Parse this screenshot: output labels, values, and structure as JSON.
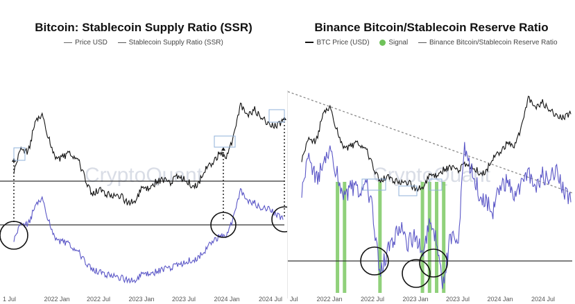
{
  "chart_data": [
    {
      "type": "line",
      "title": "Bitcoin: Stablecoin Supply Ratio (SSR)",
      "legend": [
        "Price USD",
        "Stablecoin Supply Ratio (SSR)"
      ],
      "legend_placement": "top",
      "watermark": "CryptoQuant",
      "x_ticks": [
        "1 Jul",
        "2022 Jan",
        "2022 Jul",
        "2023 Jan",
        "2023 Jul",
        "2024 Jan",
        "2024 Jul"
      ],
      "series": [
        {
          "name": "Price USD",
          "color": "#111111",
          "x": [
            "2021-07",
            "2021-08",
            "2021-09",
            "2021-10",
            "2021-11",
            "2021-12",
            "2022-01",
            "2022-02",
            "2022-03",
            "2022-04",
            "2022-05",
            "2022-06",
            "2022-07",
            "2022-08",
            "2022-09",
            "2022-10",
            "2022-11",
            "2022-12",
            "2023-01",
            "2023-02",
            "2023-03",
            "2023-04",
            "2023-05",
            "2023-06",
            "2023-07",
            "2023-08",
            "2023-09",
            "2023-10",
            "2023-11",
            "2023-12",
            "2024-01",
            "2024-02",
            "2024-03",
            "2024-04",
            "2024-05",
            "2024-06",
            "2024-07",
            "2024-08",
            "2024-09"
          ],
          "values": [
            33,
            46,
            43,
            60,
            64,
            50,
            40,
            41,
            43,
            40,
            30,
            20,
            23,
            21,
            19,
            20,
            16,
            17,
            23,
            24,
            27,
            29,
            27,
            30,
            29,
            26,
            26,
            34,
            37,
            43,
            42,
            52,
            70,
            64,
            67,
            62,
            60,
            58,
            60
          ]
        },
        {
          "name": "Stablecoin Supply Ratio (SSR)",
          "color": "#5b57c7",
          "x": [
            "2021-07",
            "2021-08",
            "2021-09",
            "2021-10",
            "2021-11",
            "2021-12",
            "2022-01",
            "2022-02",
            "2022-03",
            "2022-04",
            "2022-05",
            "2022-06",
            "2022-07",
            "2022-08",
            "2022-09",
            "2022-10",
            "2022-11",
            "2022-12",
            "2023-01",
            "2023-02",
            "2023-03",
            "2023-04",
            "2023-05",
            "2023-06",
            "2023-07",
            "2023-08",
            "2023-09",
            "2023-10",
            "2023-11",
            "2023-12",
            "2024-01",
            "2024-02",
            "2024-03",
            "2024-04",
            "2024-05",
            "2024-06",
            "2024-07",
            "2024-08",
            "2024-09"
          ],
          "values": [
            4.5,
            6.0,
            5.8,
            7.5,
            8.2,
            6.0,
            4.5,
            4.3,
            4.0,
            3.5,
            2.6,
            1.8,
            1.6,
            1.4,
            1.2,
            1.1,
            0.9,
            0.9,
            1.3,
            1.5,
            1.6,
            1.9,
            2.0,
            2.2,
            2.4,
            2.7,
            2.9,
            3.5,
            4.3,
            4.8,
            5.0,
            6.5,
            9.0,
            8.0,
            7.8,
            7.2,
            7.5,
            6.8,
            6.3
          ]
        }
      ]
    },
    {
      "type": "line",
      "title": "Binance Bitcoin/Stablecoin Reserve Ratio",
      "legend": [
        "BTC Price (USD)",
        "Signal",
        "Binance Bitcoin/Stablecoin Reserve Ratio"
      ],
      "legend_placement": "top",
      "watermark": "CryptoQuant",
      "x_ticks": [
        "Jul",
        "2022 Jan",
        "2022 Jul",
        "2023 Jan",
        "2023 Jul",
        "2024 Jan",
        "2024 Jul"
      ],
      "series": [
        {
          "name": "BTC Price (USD)",
          "color": "#111111",
          "x": [
            "2021-07",
            "2021-08",
            "2021-09",
            "2021-10",
            "2021-11",
            "2021-12",
            "2022-01",
            "2022-02",
            "2022-03",
            "2022-04",
            "2022-05",
            "2022-06",
            "2022-07",
            "2022-08",
            "2022-09",
            "2022-10",
            "2022-11",
            "2022-12",
            "2023-01",
            "2023-02",
            "2023-03",
            "2023-04",
            "2023-05",
            "2023-06",
            "2023-07",
            "2023-08",
            "2023-09",
            "2023-10",
            "2023-11",
            "2023-12",
            "2024-01",
            "2024-02",
            "2024-03",
            "2024-04",
            "2024-05",
            "2024-06",
            "2024-07",
            "2024-08",
            "2024-09"
          ],
          "values": [
            33,
            46,
            43,
            60,
            64,
            50,
            40,
            41,
            43,
            40,
            30,
            20,
            23,
            21,
            19,
            20,
            16,
            17,
            23,
            24,
            27,
            29,
            27,
            30,
            29,
            26,
            26,
            34,
            37,
            43,
            42,
            52,
            70,
            64,
            67,
            62,
            60,
            58,
            60
          ]
        },
        {
          "name": "Binance Bitcoin/Stablecoin Reserve Ratio",
          "color": "#5b57c7",
          "x": [
            "2021-07",
            "2021-08",
            "2021-09",
            "2021-10",
            "2021-11",
            "2021-12",
            "2022-01",
            "2022-02",
            "2022-03",
            "2022-04",
            "2022-05",
            "2022-06",
            "2022-07",
            "2022-08",
            "2022-09",
            "2022-10",
            "2022-11",
            "2022-12",
            "2023-01",
            "2023-02",
            "2023-03",
            "2023-04",
            "2023-05",
            "2023-06",
            "2023-07",
            "2023-08",
            "2023-09",
            "2023-10",
            "2023-11",
            "2023-12",
            "2024-01",
            "2024-02",
            "2024-03",
            "2024-04",
            "2024-05",
            "2024-06",
            "2024-07",
            "2024-08",
            "2024-09"
          ],
          "values": [
            5.0,
            6.8,
            5.5,
            6.2,
            7.0,
            5.8,
            4.8,
            5.2,
            5.0,
            5.5,
            4.2,
            1.0,
            2.0,
            2.8,
            3.2,
            2.5,
            2.9,
            2.2,
            3.3,
            2.8,
            0.5,
            3.0,
            2.4,
            7.0,
            6.0,
            5.0,
            4.6,
            4.0,
            5.2,
            5.5,
            5.0,
            5.4,
            6.0,
            5.2,
            5.8,
            5.5,
            6.3,
            5.0,
            4.5
          ]
        },
        {
          "name": "Signal",
          "color": "#6fc25a",
          "x": [
            "2021-12",
            "2022-01",
            "2022-06",
            "2022-12",
            "2023-01",
            "2023-02",
            "2023-03"
          ],
          "values": [
            1,
            1,
            1,
            1,
            1,
            1,
            1
          ]
        }
      ]
    }
  ]
}
